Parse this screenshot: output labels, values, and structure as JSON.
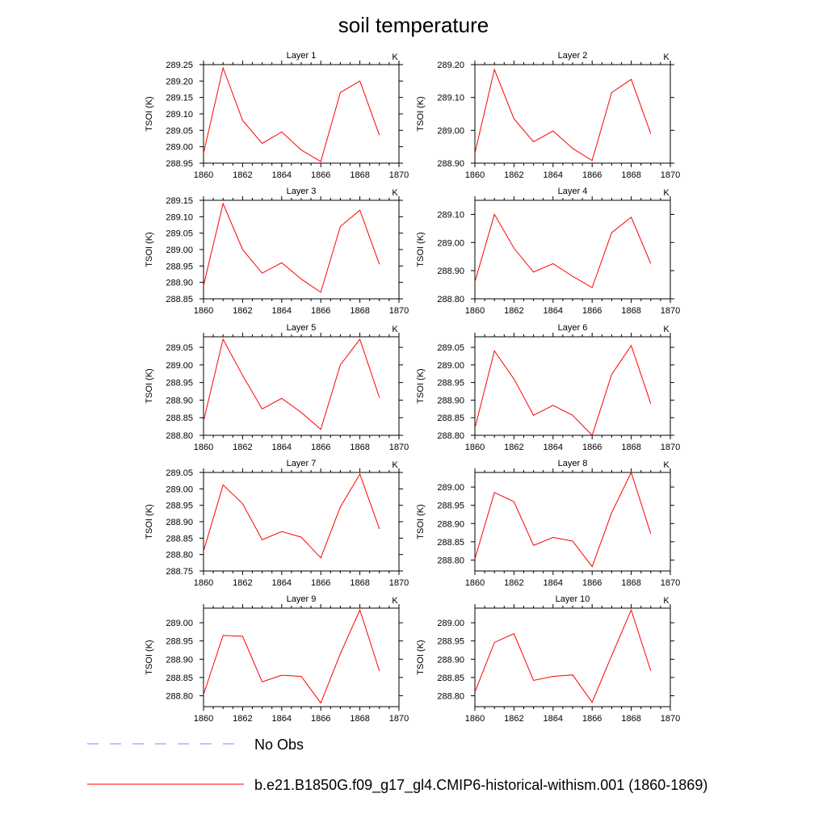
{
  "title": "soil temperature",
  "colors": {
    "model": "#ff0000",
    "obs": "#8080ff",
    "axis": "#000000"
  },
  "legend": [
    {
      "label": "No Obs",
      "style": "dashed",
      "color": "#8080ff"
    },
    {
      "label": "b.e21.B1850G.f09_g17_gl4.CMIP6-historical-withism.001 (1860-1869)",
      "style": "solid",
      "color": "#ff0000"
    }
  ],
  "chart_data": [
    {
      "type": "line",
      "title": "Layer 1",
      "units": "K",
      "ylabel": "TSOI  (K)",
      "xlim": [
        1860,
        1870
      ],
      "xticks": [
        "1860",
        "1862",
        "1864",
        "1866",
        "1868",
        "1870"
      ],
      "ylim": [
        288.95,
        289.25
      ],
      "yticks": [
        "288.95",
        "289.00",
        "289.05",
        "289.10",
        "289.15",
        "289.20",
        "289.25"
      ],
      "x": [
        1860,
        1861,
        1862,
        1863,
        1864,
        1865,
        1866,
        1867,
        1868,
        1869
      ],
      "series": [
        {
          "values": [
            288.98,
            289.24,
            289.08,
            289.01,
            289.045,
            288.99,
            288.955,
            289.165,
            289.2,
            289.035
          ]
        }
      ]
    },
    {
      "type": "line",
      "title": "Layer 2",
      "units": "K",
      "ylabel": "TSOI  (K)",
      "xlim": [
        1860,
        1870
      ],
      "xticks": [
        "1860",
        "1862",
        "1864",
        "1866",
        "1868",
        "1870"
      ],
      "ylim": [
        288.9,
        289.2
      ],
      "yticks": [
        "288.90",
        "289.00",
        "289.10",
        "289.20"
      ],
      "x": [
        1860,
        1861,
        1862,
        1863,
        1864,
        1865,
        1866,
        1867,
        1868,
        1869
      ],
      "series": [
        {
          "values": [
            288.93,
            289.185,
            289.035,
            288.965,
            288.998,
            288.945,
            288.908,
            289.115,
            289.155,
            288.99
          ]
        }
      ]
    },
    {
      "type": "line",
      "title": "Layer 3",
      "units": "K",
      "ylabel": "TSOI  (K)",
      "xlim": [
        1860,
        1870
      ],
      "xticks": [
        "1860",
        "1862",
        "1864",
        "1866",
        "1868",
        "1870"
      ],
      "ylim": [
        288.85,
        289.15
      ],
      "yticks": [
        "288.85",
        "288.90",
        "288.95",
        "289.00",
        "289.05",
        "289.10",
        "289.15"
      ],
      "x": [
        1860,
        1861,
        1862,
        1863,
        1864,
        1865,
        1866,
        1867,
        1868,
        1869
      ],
      "series": [
        {
          "values": [
            288.89,
            289.14,
            289.0,
            288.928,
            288.96,
            288.91,
            288.87,
            289.07,
            289.12,
            288.955
          ]
        }
      ]
    },
    {
      "type": "line",
      "title": "Layer 4",
      "units": "K",
      "ylabel": "TSOI  (K)",
      "xlim": [
        1860,
        1870
      ],
      "xticks": [
        "1860",
        "1862",
        "1864",
        "1866",
        "1868",
        "1870"
      ],
      "ylim": [
        288.8,
        289.15
      ],
      "yticks": [
        "288.80",
        "288.90",
        "289.00",
        "289.10"
      ],
      "x": [
        1860,
        1861,
        1862,
        1863,
        1864,
        1865,
        1866,
        1867,
        1868,
        1869
      ],
      "series": [
        {
          "values": [
            288.86,
            289.1,
            288.98,
            288.895,
            288.925,
            288.88,
            288.84,
            289.035,
            289.09,
            288.925
          ]
        }
      ]
    },
    {
      "type": "line",
      "title": "Layer 5",
      "units": "K",
      "ylabel": "TSOI  (K)",
      "xlim": [
        1860,
        1870
      ],
      "xticks": [
        "1860",
        "1862",
        "1864",
        "1866",
        "1868",
        "1870"
      ],
      "ylim": [
        288.8,
        289.08
      ],
      "yticks": [
        "288.80",
        "288.85",
        "288.90",
        "288.95",
        "289.00",
        "289.05"
      ],
      "x": [
        1860,
        1861,
        1862,
        1863,
        1864,
        1865,
        1866,
        1867,
        1868,
        1869
      ],
      "series": [
        {
          "values": [
            288.84,
            289.073,
            288.97,
            288.875,
            288.905,
            288.865,
            288.817,
            289.0,
            289.073,
            288.907
          ]
        }
      ]
    },
    {
      "type": "line",
      "title": "Layer 6",
      "units": "K",
      "ylabel": "TSOI  (K)",
      "xlim": [
        1860,
        1870
      ],
      "xticks": [
        "1860",
        "1862",
        "1864",
        "1866",
        "1868",
        "1870"
      ],
      "ylim": [
        288.8,
        289.08
      ],
      "yticks": [
        "288.80",
        "288.85",
        "288.90",
        "288.95",
        "289.00",
        "289.05"
      ],
      "x": [
        1860,
        1861,
        1862,
        1863,
        1864,
        1865,
        1866,
        1867,
        1868,
        1869
      ],
      "series": [
        {
          "values": [
            288.82,
            289.04,
            288.96,
            288.857,
            288.885,
            288.857,
            288.8,
            288.973,
            289.055,
            288.89
          ]
        }
      ]
    },
    {
      "type": "line",
      "title": "Layer 7",
      "units": "K",
      "ylabel": "TSOI  (K)",
      "xlim": [
        1860,
        1870
      ],
      "xticks": [
        "1860",
        "1862",
        "1864",
        "1866",
        "1868",
        "1870"
      ],
      "ylim": [
        288.75,
        289.05
      ],
      "yticks": [
        "288.75",
        "288.80",
        "288.85",
        "288.90",
        "288.95",
        "289.00",
        "289.05"
      ],
      "x": [
        1860,
        1861,
        1862,
        1863,
        1864,
        1865,
        1866,
        1867,
        1868,
        1869
      ],
      "series": [
        {
          "values": [
            288.81,
            289.012,
            288.955,
            288.845,
            288.87,
            288.853,
            288.79,
            288.945,
            289.045,
            288.878
          ]
        }
      ]
    },
    {
      "type": "line",
      "title": "Layer 8",
      "units": "K",
      "ylabel": "TSOI  (K)",
      "xlim": [
        1860,
        1870
      ],
      "xticks": [
        "1860",
        "1862",
        "1864",
        "1866",
        "1868",
        "1870"
      ],
      "ylim": [
        288.77,
        289.04
      ],
      "yticks": [
        "288.80",
        "288.85",
        "288.90",
        "288.95",
        "289.00"
      ],
      "x": [
        1860,
        1861,
        1862,
        1863,
        1864,
        1865,
        1866,
        1867,
        1868,
        1869
      ],
      "series": [
        {
          "values": [
            288.803,
            288.985,
            288.96,
            288.84,
            288.862,
            288.852,
            288.782,
            288.93,
            289.04,
            288.872
          ]
        }
      ]
    },
    {
      "type": "line",
      "title": "Layer 9",
      "units": "K",
      "ylabel": "TSOI  (K)",
      "xlim": [
        1860,
        1870
      ],
      "xticks": [
        "1860",
        "1862",
        "1864",
        "1866",
        "1868",
        "1870"
      ],
      "ylim": [
        288.77,
        289.04
      ],
      "yticks": [
        "288.80",
        "288.85",
        "288.90",
        "288.95",
        "289.00"
      ],
      "x": [
        1860,
        1861,
        1862,
        1863,
        1864,
        1865,
        1866,
        1867,
        1868,
        1869
      ],
      "series": [
        {
          "values": [
            288.803,
            288.965,
            288.963,
            288.838,
            288.856,
            288.853,
            288.78,
            288.915,
            289.035,
            288.868
          ]
        }
      ]
    },
    {
      "type": "line",
      "title": "Layer 10",
      "units": "K",
      "ylabel": "TSOI  (K)",
      "xlim": [
        1860,
        1870
      ],
      "xticks": [
        "1860",
        "1862",
        "1864",
        "1866",
        "1868",
        "1870"
      ],
      "ylim": [
        288.77,
        289.04
      ],
      "yticks": [
        "288.80",
        "288.85",
        "288.90",
        "288.95",
        "289.00"
      ],
      "x": [
        1860,
        1861,
        1862,
        1863,
        1864,
        1865,
        1866,
        1867,
        1868,
        1869
      ],
      "series": [
        {
          "values": [
            288.81,
            288.946,
            288.97,
            288.842,
            288.853,
            288.857,
            288.782,
            288.91,
            289.035,
            288.868
          ]
        }
      ]
    }
  ]
}
